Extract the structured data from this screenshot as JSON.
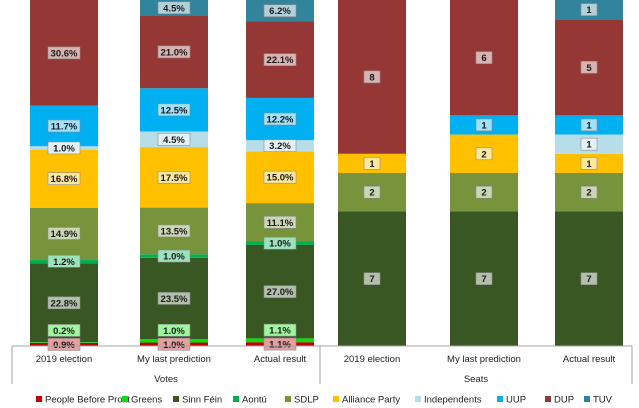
{
  "chart_data": {
    "type": "bar",
    "stacked": true,
    "groups": [
      {
        "name": "Votes",
        "unit": "%",
        "categories": [
          "2019 election",
          "My last prediction",
          "Actual result"
        ],
        "series": [
          {
            "name": "People Before Profit",
            "color": "#c00000",
            "values": [
              0.9,
              1.0,
              1.1
            ],
            "labels": [
              "0.9%",
              "1.0%",
              "1.1%"
            ]
          },
          {
            "name": "Greens",
            "color": "#00e600",
            "values": [
              0.2,
              1.0,
              1.1
            ],
            "labels": [
              "0.2%",
              "1.0%",
              "1.1%"
            ]
          },
          {
            "name": "Sinn Féin",
            "color": "#385723",
            "values": [
              22.8,
              23.5,
              27.0
            ],
            "labels": [
              "22.8%",
              "23.5%",
              "27.0%"
            ]
          },
          {
            "name": "Aontú",
            "color": "#00b050",
            "values": [
              1.2,
              1.0,
              1.0
            ],
            "labels": [
              "1.2%",
              "1.0%",
              "1.0%"
            ]
          },
          {
            "name": "SDLP",
            "color": "#77933c",
            "values": [
              14.9,
              13.5,
              11.1
            ],
            "labels": [
              "14.9%",
              "13.5%",
              "11.1%"
            ]
          },
          {
            "name": "Alliance Party",
            "color": "#ffc000",
            "values": [
              16.8,
              17.5,
              15.0
            ],
            "labels": [
              "16.8%",
              "17.5%",
              "15.0%"
            ]
          },
          {
            "name": "Independents",
            "color": "#b7dee8",
            "values": [
              1.0,
              4.5,
              3.2
            ],
            "labels": [
              "1.0%",
              "4.5%",
              "3.2%"
            ]
          },
          {
            "name": "UUP",
            "color": "#00b0f0",
            "values": [
              11.7,
              12.5,
              12.2
            ],
            "labels": [
              "11.7%",
              "12.5%",
              "12.2%"
            ]
          },
          {
            "name": "DUP",
            "color": "#953735",
            "values": [
              30.6,
              21.0,
              22.1
            ],
            "labels": [
              "30.6%",
              "21.0%",
              "22.1%"
            ]
          },
          {
            "name": "TUV",
            "color": "#31849b",
            "values": [
              0,
              4.5,
              6.2
            ],
            "labels": [
              "",
              "4.5%",
              "6.2%"
            ]
          }
        ]
      },
      {
        "name": "Seats",
        "unit": "seats",
        "categories": [
          "2019 election",
          "My last prediction",
          "Actual result"
        ],
        "series": [
          {
            "name": "People Before Profit",
            "color": "#c00000",
            "values": [
              0,
              0,
              0
            ],
            "labels": [
              "",
              "",
              ""
            ]
          },
          {
            "name": "Greens",
            "color": "#00e600",
            "values": [
              0,
              0,
              0
            ],
            "labels": [
              "",
              "",
              ""
            ]
          },
          {
            "name": "Sinn Féin",
            "color": "#385723",
            "values": [
              7,
              7,
              7
            ],
            "labels": [
              "7",
              "7",
              "7"
            ]
          },
          {
            "name": "Aontú",
            "color": "#00b050",
            "values": [
              0,
              0,
              0
            ],
            "labels": [
              "",
              "",
              ""
            ]
          },
          {
            "name": "SDLP",
            "color": "#77933c",
            "values": [
              2,
              2,
              2
            ],
            "labels": [
              "2",
              "2",
              "2"
            ]
          },
          {
            "name": "Alliance Party",
            "color": "#ffc000",
            "values": [
              1,
              2,
              1
            ],
            "labels": [
              "1",
              "2",
              "1"
            ]
          },
          {
            "name": "Independents",
            "color": "#b7dee8",
            "values": [
              0,
              0,
              1
            ],
            "labels": [
              "",
              "",
              "1"
            ]
          },
          {
            "name": "UUP",
            "color": "#00b0f0",
            "values": [
              0,
              1,
              1
            ],
            "labels": [
              "",
              "1",
              "1"
            ]
          },
          {
            "name": "DUP",
            "color": "#953735",
            "values": [
              8,
              6,
              5
            ],
            "labels": [
              "8",
              "6",
              "5"
            ]
          },
          {
            "name": "TUV",
            "color": "#31849b",
            "values": [
              0,
              0,
              1
            ],
            "labels": [
              "",
              "",
              "1"
            ]
          }
        ]
      }
    ],
    "legend_position": "bottom",
    "grid": false
  }
}
